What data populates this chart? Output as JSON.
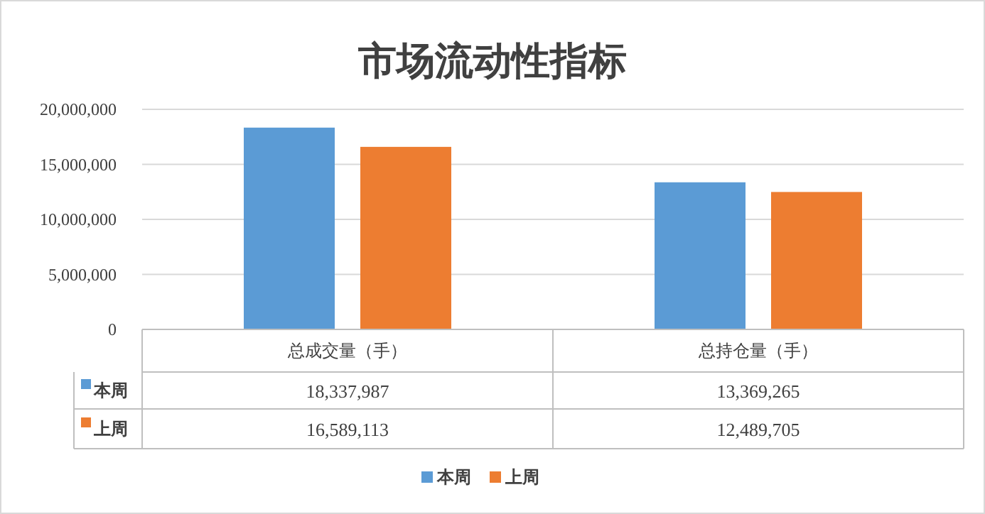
{
  "chart_data": {
    "type": "bar",
    "title": "市场流动性指标",
    "categories": [
      "总成交量（手）",
      "总持仓量（手）"
    ],
    "series": [
      {
        "name": "本周",
        "color": "#5b9bd5",
        "values": [
          18337987,
          13369265
        ],
        "value_labels": [
          "18,337,987",
          "13,369,265"
        ]
      },
      {
        "name": "上周",
        "color": "#ed7d31",
        "values": [
          16589113,
          12489705
        ],
        "value_labels": [
          "16,589,113",
          "12,489,705"
        ]
      }
    ],
    "ylim": [
      0,
      20000000
    ],
    "yticks": [
      0,
      {
        "value": 5000000,
        "label": "5,000,000"
      },
      {
        "value": 10000000,
        "label": "10,000,000"
      },
      {
        "value": 15000000,
        "label": "15,000,000"
      },
      {
        "value": 20000000,
        "label": "20,000,000"
      }
    ],
    "grid": "y",
    "legend": "bottom"
  }
}
